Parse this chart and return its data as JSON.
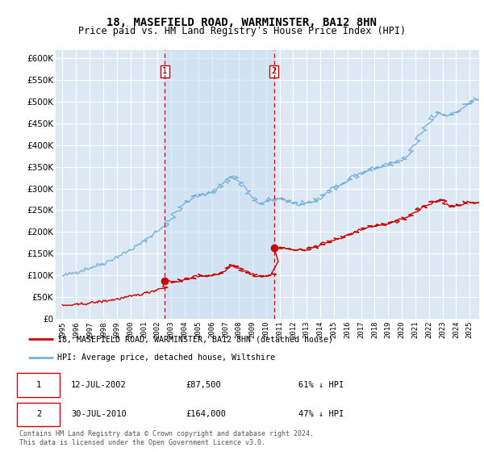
{
  "title": "18, MASEFIELD ROAD, WARMINSTER, BA12 8HN",
  "subtitle": "Price paid vs. HM Land Registry's House Price Index (HPI)",
  "background_color": "#ffffff",
  "plot_bg_color": "#dce9f5",
  "grid_color": "#ffffff",
  "hpi_color": "#7ab4d8",
  "price_color": "#cc0000",
  "dashed_color": "#cc0000",
  "shade_color": "#c8ddf0",
  "ylim": [
    0,
    620000
  ],
  "yticks": [
    0,
    50000,
    100000,
    150000,
    200000,
    250000,
    300000,
    350000,
    400000,
    450000,
    500000,
    550000,
    600000
  ],
  "ytick_labels": [
    "£0",
    "£50K",
    "£100K",
    "£150K",
    "£200K",
    "£250K",
    "£300K",
    "£350K",
    "£400K",
    "£450K",
    "£500K",
    "£550K",
    "£600K"
  ],
  "sale1_x": 2002.54,
  "sale1_y": 87500,
  "sale2_x": 2010.58,
  "sale2_y": 164000,
  "legend_line1": "18, MASEFIELD ROAD, WARMINSTER, BA12 8HN (detached house)",
  "legend_line2": "HPI: Average price, detached house, Wiltshire",
  "table_row1": [
    "1",
    "12-JUL-2002",
    "£87,500",
    "61% ↓ HPI"
  ],
  "table_row2": [
    "2",
    "30-JUL-2010",
    "£164,000",
    "47% ↓ HPI"
  ],
  "footnote": "Contains HM Land Registry data © Crown copyright and database right 2024.\nThis data is licensed under the Open Government Licence v3.0.",
  "xlim_start": 1994.5,
  "xlim_end": 2025.7
}
